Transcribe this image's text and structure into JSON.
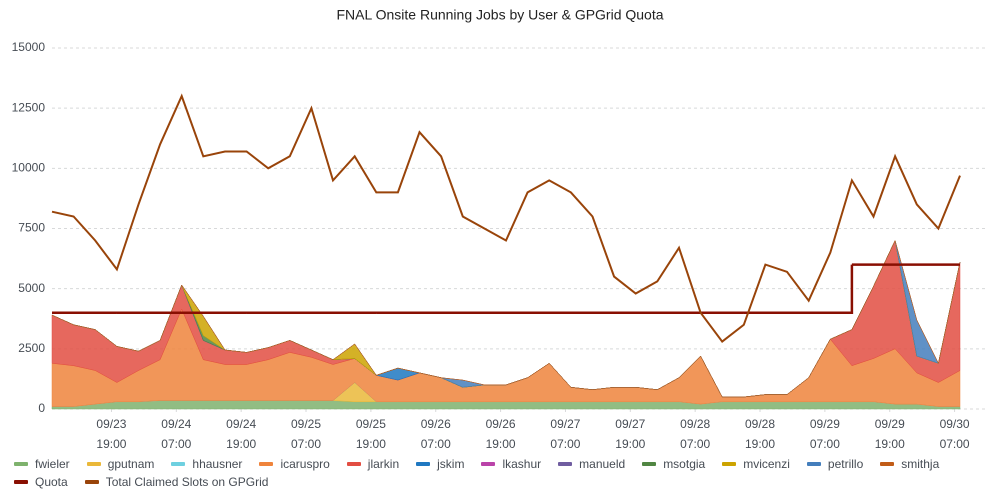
{
  "chart_data": {
    "type": "area",
    "title": "FNAL Onsite Running Jobs by User & GPGrid Quota",
    "x": [
      "09/23 08:00",
      "09/23 12:00",
      "09/23 16:00",
      "09/23 20:00",
      "09/24 00:00",
      "09/24 04:00",
      "09/24 08:00",
      "09/24 12:00",
      "09/24 16:00",
      "09/24 20:00",
      "09/25 00:00",
      "09/25 04:00",
      "09/25 08:00",
      "09/25 12:00",
      "09/25 16:00",
      "09/25 20:00",
      "09/26 00:00",
      "09/26 04:00",
      "09/26 08:00",
      "09/26 12:00",
      "09/26 16:00",
      "09/26 20:00",
      "09/27 00:00",
      "09/27 04:00",
      "09/27 08:00",
      "09/27 12:00",
      "09/27 16:00",
      "09/27 20:00",
      "09/28 00:00",
      "09/28 04:00",
      "09/28 08:00",
      "09/28 12:00",
      "09/28 16:00",
      "09/28 20:00",
      "09/29 00:00",
      "09/29 04:00",
      "09/29 08:00",
      "09/29 12:00",
      "09/29 16:00",
      "09/29 20:00",
      "09/30 00:00",
      "09/30 04:00",
      "09/30 08:00"
    ],
    "xlim": [
      "09/23 08:00",
      "09/30 08:00"
    ],
    "xticks": [
      "09/23 19:00",
      "09/24 07:00",
      "09/24 19:00",
      "09/25 07:00",
      "09/25 19:00",
      "09/26 07:00",
      "09/26 19:00",
      "09/27 07:00",
      "09/27 19:00",
      "09/28 07:00",
      "09/28 19:00",
      "09/29 07:00",
      "09/29 19:00",
      "09/30 07:00"
    ],
    "ylim": [
      0,
      15000
    ],
    "yticks": [
      0,
      2500,
      5000,
      7500,
      10000,
      12500,
      15000
    ],
    "grid": true,
    "stacked": true,
    "legend": "bottom",
    "series": [
      {
        "name": "fwieler",
        "type": "area",
        "color": "#7eb26d",
        "values": [
          100,
          100,
          200,
          300,
          300,
          350,
          350,
          350,
          350,
          350,
          350,
          350,
          350,
          350,
          300,
          300,
          300,
          300,
          300,
          300,
          300,
          300,
          300,
          300,
          300,
          300,
          300,
          300,
          300,
          300,
          200,
          300,
          300,
          300,
          300,
          300,
          300,
          300,
          300,
          200,
          200,
          100,
          100
        ]
      },
      {
        "name": "gputnam",
        "type": "area",
        "color": "#eab839",
        "values": [
          0,
          0,
          0,
          0,
          0,
          0,
          0,
          0,
          0,
          0,
          0,
          0,
          0,
          0,
          800,
          0,
          0,
          0,
          0,
          0,
          0,
          0,
          0,
          0,
          0,
          0,
          0,
          0,
          0,
          0,
          0,
          0,
          0,
          0,
          0,
          0,
          0,
          0,
          0,
          0,
          0,
          0,
          0
        ]
      },
      {
        "name": "hhausner",
        "type": "area",
        "color": "#6ed0e0",
        "values": [
          0,
          0,
          0,
          0,
          0,
          0,
          0,
          0,
          0,
          0,
          0,
          0,
          0,
          0,
          0,
          0,
          0,
          0,
          0,
          0,
          0,
          0,
          0,
          0,
          0,
          0,
          0,
          0,
          0,
          0,
          0,
          0,
          0,
          0,
          0,
          0,
          0,
          0,
          0,
          0,
          0,
          0,
          0
        ]
      },
      {
        "name": "icaruspro",
        "type": "area",
        "color": "#ef843c",
        "values": [
          1800,
          1700,
          1400,
          800,
          1300,
          1700,
          3800,
          1700,
          1500,
          1500,
          1700,
          2000,
          1800,
          1500,
          1000,
          1100,
          900,
          1200,
          1000,
          600,
          700,
          700,
          1000,
          1600,
          600,
          500,
          600,
          600,
          500,
          1000,
          2000,
          200,
          200,
          300,
          300,
          1000,
          2600,
          1500,
          1800,
          2300,
          1300,
          1000,
          1500
        ]
      },
      {
        "name": "jlarkin",
        "type": "area",
        "color": "#e24d42",
        "values": [
          2000,
          1700,
          1700,
          1500,
          800,
          800,
          1000,
          800,
          600,
          500,
          500,
          500,
          300,
          200,
          0,
          0,
          0,
          0,
          0,
          0,
          0,
          0,
          0,
          0,
          0,
          0,
          0,
          0,
          0,
          0,
          0,
          0,
          0,
          0,
          0,
          0,
          0,
          1500,
          3000,
          4500,
          700,
          800,
          4500
        ]
      },
      {
        "name": "jskim",
        "type": "area",
        "color": "#1f78c1",
        "values": [
          0,
          0,
          0,
          0,
          0,
          0,
          0,
          0,
          0,
          0,
          0,
          0,
          0,
          0,
          0,
          0,
          500,
          0,
          0,
          0,
          0,
          0,
          0,
          0,
          0,
          0,
          0,
          0,
          0,
          0,
          0,
          0,
          0,
          0,
          0,
          0,
          0,
          0,
          0,
          0,
          0,
          0,
          0
        ]
      },
      {
        "name": "lkashur",
        "type": "area",
        "color": "#ba43a9",
        "values": [
          0,
          0,
          0,
          0,
          0,
          0,
          0,
          0,
          0,
          0,
          0,
          0,
          0,
          0,
          0,
          0,
          0,
          0,
          0,
          0,
          0,
          0,
          0,
          0,
          0,
          0,
          0,
          0,
          0,
          0,
          0,
          0,
          0,
          0,
          0,
          0,
          0,
          0,
          0,
          0,
          0,
          0,
          0
        ]
      },
      {
        "name": "manueld",
        "type": "area",
        "color": "#705da0",
        "values": [
          0,
          0,
          0,
          0,
          0,
          0,
          0,
          0,
          0,
          0,
          0,
          0,
          0,
          0,
          0,
          0,
          0,
          0,
          0,
          0,
          0,
          0,
          0,
          0,
          0,
          0,
          0,
          0,
          0,
          0,
          0,
          0,
          0,
          0,
          0,
          0,
          0,
          0,
          0,
          0,
          0,
          0,
          0
        ]
      },
      {
        "name": "msotgia",
        "type": "area",
        "color": "#508642",
        "values": [
          0,
          0,
          0,
          0,
          0,
          0,
          0,
          200,
          0,
          0,
          0,
          0,
          0,
          0,
          0,
          0,
          0,
          0,
          0,
          0,
          0,
          0,
          0,
          0,
          0,
          0,
          0,
          0,
          0,
          0,
          0,
          0,
          0,
          0,
          0,
          0,
          0,
          0,
          0,
          0,
          0,
          0,
          0
        ]
      },
      {
        "name": "mvicenzi",
        "type": "area",
        "color": "#cca300",
        "values": [
          0,
          0,
          0,
          0,
          0,
          0,
          0,
          800,
          0,
          0,
          0,
          0,
          0,
          0,
          600,
          0,
          0,
          0,
          0,
          0,
          0,
          0,
          0,
          0,
          0,
          0,
          0,
          0,
          0,
          0,
          0,
          0,
          0,
          0,
          0,
          0,
          0,
          0,
          0,
          0,
          0,
          0,
          0
        ]
      },
      {
        "name": "petrillo",
        "type": "area",
        "color": "#447ebc",
        "values": [
          0,
          0,
          0,
          0,
          0,
          0,
          0,
          0,
          0,
          0,
          0,
          0,
          0,
          0,
          0,
          0,
          0,
          0,
          0,
          300,
          0,
          0,
          0,
          0,
          0,
          0,
          0,
          0,
          0,
          0,
          0,
          0,
          0,
          0,
          0,
          0,
          0,
          0,
          0,
          0,
          1500,
          0,
          0
        ]
      },
      {
        "name": "smithja",
        "type": "area",
        "color": "#c15c17",
        "values": [
          0,
          0,
          0,
          0,
          0,
          0,
          0,
          0,
          0,
          0,
          0,
          0,
          0,
          0,
          0,
          0,
          0,
          0,
          0,
          0,
          0,
          0,
          0,
          0,
          0,
          0,
          0,
          0,
          0,
          0,
          0,
          0,
          0,
          0,
          0,
          0,
          0,
          0,
          0,
          0,
          0,
          0,
          0
        ]
      },
      {
        "name": "Quota",
        "type": "step",
        "color": "#890f02",
        "values": [
          4000,
          4000,
          4000,
          4000,
          4000,
          4000,
          4000,
          4000,
          4000,
          4000,
          4000,
          4000,
          4000,
          4000,
          4000,
          4000,
          4000,
          4000,
          4000,
          4000,
          4000,
          4000,
          4000,
          4000,
          4000,
          4000,
          4000,
          4000,
          4000,
          4000,
          4000,
          4000,
          4000,
          4000,
          4000,
          4000,
          4000,
          6000,
          6000,
          6000,
          6000,
          6000,
          6000
        ]
      },
      {
        "name": "Total Claimed Slots on GPGrid",
        "type": "line",
        "color": "#99440a",
        "values": [
          8200,
          8000,
          7000,
          5800,
          8500,
          11000,
          13000,
          10500,
          10700,
          10700,
          10000,
          10500,
          12500,
          9500,
          10500,
          9000,
          9000,
          11500,
          10500,
          8000,
          7500,
          7000,
          9000,
          9500,
          9000,
          8000,
          5500,
          4800,
          5300,
          6700,
          4000,
          2800,
          3500,
          6000,
          5700,
          4500,
          6500,
          9500,
          8000,
          10500,
          8500,
          7500,
          9700
        ]
      }
    ]
  }
}
